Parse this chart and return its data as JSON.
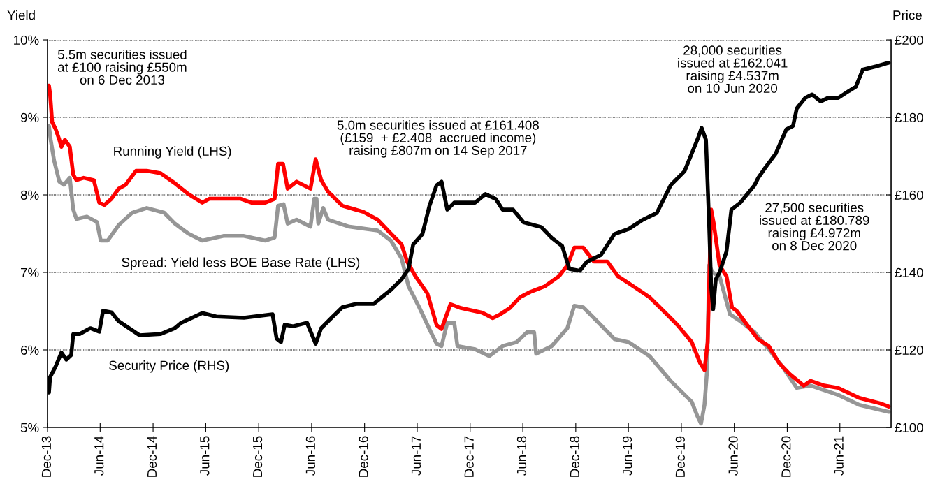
{
  "chart_data": {
    "type": "line",
    "ylabel": "Yield",
    "y2label": "Price",
    "xlim": [
      "2013-12-01",
      "2021-11-25"
    ],
    "xticks": [
      {
        "value": "2013-12-01",
        "label": "Dec-13"
      },
      {
        "value": "2014-06-01",
        "label": "Jun-14"
      },
      {
        "value": "2014-12-01",
        "label": "Dec-14"
      },
      {
        "value": "2015-06-01",
        "label": "Jun-15"
      },
      {
        "value": "2015-12-01",
        "label": "Dec-15"
      },
      {
        "value": "2016-06-01",
        "label": "Jun-16"
      },
      {
        "value": "2016-12-01",
        "label": "Dec-16"
      },
      {
        "value": "2017-06-01",
        "label": "Jun-17"
      },
      {
        "value": "2017-12-01",
        "label": "Dec-17"
      },
      {
        "value": "2018-06-01",
        "label": "Jun-18"
      },
      {
        "value": "2018-12-01",
        "label": "Dec-18"
      },
      {
        "value": "2019-06-01",
        "label": "Jun-19"
      },
      {
        "value": "2019-12-01",
        "label": "Dec-19"
      },
      {
        "value": "2020-06-01",
        "label": "Jun-20"
      },
      {
        "value": "2020-12-01",
        "label": "Dec-20"
      },
      {
        "value": "2021-06-01",
        "label": "Jun-21"
      }
    ],
    "ylim": [
      5,
      10
    ],
    "yticks": [
      {
        "value": 5,
        "label": "5%"
      },
      {
        "value": 6,
        "label": "6%"
      },
      {
        "value": 7,
        "label": "7%"
      },
      {
        "value": 8,
        "label": "8%"
      },
      {
        "value": 9,
        "label": "9%"
      },
      {
        "value": 10,
        "label": "10%"
      }
    ],
    "y2lim": [
      100,
      200
    ],
    "y2ticks": [
      {
        "value": 100,
        "label": "£100"
      },
      {
        "value": 120,
        "label": "£120"
      },
      {
        "value": 140,
        "label": "£140"
      },
      {
        "value": 160,
        "label": "£160"
      },
      {
        "value": 180,
        "label": "£180"
      },
      {
        "value": 200,
        "label": "£200"
      }
    ],
    "grid": "y",
    "legend": false,
    "series": [
      {
        "name": "Spread: Yield less BOE Base Rate (LHS)",
        "color": "#969696",
        "x": [
          "2013-12-06",
          "2013-12-12",
          "2013-12-24",
          "2014-01-11",
          "2014-01-27",
          "2014-02-16",
          "2014-02-28",
          "2014-03-11",
          "2014-04-16",
          "2014-05-21",
          "2014-06-03",
          "2014-06-27",
          "2014-08-04",
          "2014-09-20",
          "2014-11-09",
          "2015-01-08",
          "2015-02-14",
          "2015-04-02",
          "2015-05-20",
          "2015-08-01",
          "2015-10-11",
          "2015-12-24",
          "2016-01-25",
          "2016-02-06",
          "2016-02-25",
          "2016-03-10",
          "2016-04-10",
          "2016-05-28",
          "2016-06-10",
          "2016-06-18",
          "2016-06-24",
          "2016-07-11",
          "2016-07-28",
          "2016-10-09",
          "2017-01-15",
          "2017-03-02",
          "2017-04-08",
          "2017-05-02",
          "2017-06-08",
          "2017-07-13",
          "2017-08-07",
          "2017-08-24",
          "2017-09-13",
          "2017-10-07",
          "2017-10-18",
          "2017-12-18",
          "2018-02-05",
          "2018-03-23",
          "2018-05-10",
          "2018-06-16",
          "2018-07-10",
          "2018-07-17",
          "2018-09-09",
          "2018-11-02",
          "2018-11-26",
          "2018-12-27",
          "2019-02-26",
          "2019-04-14",
          "2019-06-02",
          "2019-08-13",
          "2019-10-25",
          "2020-01-06",
          "2020-01-25",
          "2020-02-07",
          "2020-02-19",
          "2020-02-28",
          "2020-03-06",
          "2020-03-18",
          "2020-04-11",
          "2020-05-17",
          "2020-06-22",
          "2020-08-10",
          "2020-09-28",
          "2020-11-15",
          "2021-01-03",
          "2021-02-20",
          "2021-05-26",
          "2021-08-07",
          "2021-11-17"
        ],
        "values": [
          8.89,
          8.71,
          8.44,
          8.17,
          8.13,
          8.22,
          7.81,
          7.69,
          7.72,
          7.65,
          7.41,
          7.41,
          7.61,
          7.77,
          7.83,
          7.77,
          7.63,
          7.5,
          7.41,
          7.47,
          7.47,
          7.41,
          7.45,
          7.86,
          7.88,
          7.63,
          7.68,
          7.59,
          7.95,
          7.95,
          7.63,
          7.83,
          7.68,
          7.59,
          7.54,
          7.41,
          7.18,
          6.82,
          6.55,
          6.27,
          6.08,
          6.05,
          6.35,
          6.35,
          6.05,
          6.01,
          5.92,
          6.05,
          6.1,
          6.23,
          6.23,
          5.95,
          6.05,
          6.28,
          6.57,
          6.55,
          6.32,
          6.14,
          6.1,
          5.92,
          5.6,
          5.33,
          5.15,
          5.05,
          5.29,
          5.74,
          7.09,
          7.0,
          6.95,
          6.46,
          6.37,
          6.23,
          6.01,
          5.78,
          5.51,
          5.54,
          5.42,
          5.29,
          5.2
        ]
      },
      {
        "name": "Running Yield (LHS)",
        "color": "#ff0000",
        "x": [
          "2013-12-06",
          "2013-12-10",
          "2013-12-17",
          "2013-12-29",
          "2014-01-11",
          "2014-01-18",
          "2014-01-30",
          "2014-02-16",
          "2014-02-28",
          "2014-03-11",
          "2014-04-05",
          "2014-05-10",
          "2014-05-29",
          "2014-06-16",
          "2014-07-10",
          "2014-08-04",
          "2014-08-28",
          "2014-10-03",
          "2014-11-09",
          "2014-12-27",
          "2015-02-14",
          "2015-04-02",
          "2015-05-20",
          "2015-06-13",
          "2015-08-25",
          "2015-09-30",
          "2015-11-06",
          "2015-12-24",
          "2016-01-25",
          "2016-02-06",
          "2016-02-23",
          "2016-03-10",
          "2016-04-10",
          "2016-05-28",
          "2016-06-15",
          "2016-07-04",
          "2016-07-28",
          "2016-09-15",
          "2016-11-27",
          "2017-01-15",
          "2017-03-02",
          "2017-04-08",
          "2017-04-27",
          "2017-05-26",
          "2017-07-06",
          "2017-08-07",
          "2017-08-24",
          "2017-09-24",
          "2017-10-30",
          "2018-01-12",
          "2018-02-17",
          "2018-03-11",
          "2018-04-17",
          "2018-05-22",
          "2018-06-28",
          "2018-08-16",
          "2018-10-04",
          "2018-11-02",
          "2018-11-26",
          "2018-12-27",
          "2019-02-02",
          "2019-03-20",
          "2019-04-26",
          "2019-06-02",
          "2019-08-13",
          "2019-10-01",
          "2019-11-18",
          "2020-01-06",
          "2020-02-04",
          "2020-02-19",
          "2020-03-01",
          "2020-03-06",
          "2020-03-13",
          "2020-03-22",
          "2020-04-11",
          "2020-05-05",
          "2020-05-24",
          "2020-06-10",
          "2020-07-16",
          "2020-08-22",
          "2020-09-28",
          "2020-11-03",
          "2020-12-09",
          "2021-01-27",
          "2021-02-20",
          "2021-04-08",
          "2021-05-26",
          "2021-08-07",
          "2021-10-19",
          "2021-11-17"
        ],
        "values": [
          9.41,
          9.3,
          8.94,
          8.85,
          8.71,
          8.62,
          8.71,
          8.62,
          8.26,
          8.19,
          8.22,
          8.19,
          7.9,
          7.87,
          7.95,
          8.08,
          8.13,
          8.31,
          8.31,
          8.28,
          8.15,
          8.01,
          7.9,
          7.95,
          7.95,
          7.95,
          7.9,
          7.9,
          7.95,
          8.4,
          8.4,
          8.08,
          8.17,
          8.08,
          8.46,
          8.19,
          8.04,
          7.86,
          7.78,
          7.68,
          7.5,
          7.36,
          7.14,
          6.95,
          6.73,
          6.32,
          6.27,
          6.59,
          6.54,
          6.48,
          6.41,
          6.45,
          6.54,
          6.68,
          6.75,
          6.82,
          6.95,
          7.09,
          7.32,
          7.32,
          7.14,
          7.14,
          6.95,
          6.86,
          6.68,
          6.5,
          6.32,
          6.1,
          5.83,
          5.74,
          6.1,
          6.82,
          7.81,
          7.63,
          7.09,
          6.95,
          6.55,
          6.5,
          6.32,
          6.14,
          6.05,
          5.83,
          5.69,
          5.54,
          5.6,
          5.54,
          5.51,
          5.38,
          5.31,
          5.27
        ]
      },
      {
        "name": "Security Price (RHS)",
        "color": "#000000",
        "axis": "y2",
        "x": [
          "2013-12-06",
          "2013-12-10",
          "2013-12-29",
          "2014-01-18",
          "2014-02-04",
          "2014-02-21",
          "2014-02-28",
          "2014-03-22",
          "2014-04-28",
          "2014-05-29",
          "2014-06-11",
          "2014-07-10",
          "2014-08-04",
          "2014-09-09",
          "2014-10-15",
          "2014-12-27",
          "2015-02-14",
          "2015-03-08",
          "2015-05-20",
          "2015-07-07",
          "2015-10-11",
          "2016-01-18",
          "2016-02-01",
          "2016-02-16",
          "2016-02-29",
          "2016-03-29",
          "2016-05-16",
          "2016-06-15",
          "2016-07-04",
          "2016-08-09",
          "2016-09-15",
          "2016-11-03",
          "2017-01-02",
          "2017-03-02",
          "2017-04-08",
          "2017-05-02",
          "2017-05-18",
          "2017-06-19",
          "2017-07-13",
          "2017-08-07",
          "2017-08-24",
          "2017-09-13",
          "2017-10-07",
          "2017-12-18",
          "2018-01-23",
          "2018-02-28",
          "2018-03-23",
          "2018-04-28",
          "2018-06-04",
          "2018-08-04",
          "2018-09-09",
          "2018-10-15",
          "2018-11-09",
          "2018-12-15",
          "2019-01-08",
          "2019-02-26",
          "2019-04-14",
          "2019-06-02",
          "2019-07-19",
          "2019-09-07",
          "2019-10-25",
          "2019-12-12",
          "2020-01-30",
          "2020-02-09",
          "2020-02-24",
          "2020-03-06",
          "2020-03-13",
          "2020-03-20",
          "2020-03-29",
          "2020-04-11",
          "2020-05-05",
          "2020-05-22",
          "2020-06-22",
          "2020-08-10",
          "2020-08-22",
          "2020-09-16",
          "2020-10-22",
          "2020-11-28",
          "2020-12-21",
          "2021-01-03",
          "2021-02-01",
          "2021-02-25",
          "2021-03-27",
          "2021-04-20",
          "2021-05-26",
          "2021-07-02",
          "2021-07-26",
          "2021-08-19",
          "2021-10-07",
          "2021-11-17"
        ],
        "values": [
          109.0,
          113.0,
          115.7,
          119.3,
          117.5,
          118.7,
          124.1,
          124.1,
          125.6,
          124.7,
          130.1,
          129.7,
          127.4,
          125.6,
          123.8,
          124.1,
          125.6,
          127.0,
          129.5,
          128.6,
          128.3,
          129.2,
          122.9,
          122.0,
          126.5,
          126.1,
          127.0,
          121.6,
          125.6,
          128.3,
          131.0,
          131.9,
          131.9,
          135.5,
          138.2,
          140.9,
          147.2,
          149.9,
          157.1,
          162.5,
          163.4,
          156.2,
          158.0,
          158.0,
          160.2,
          158.9,
          156.2,
          156.2,
          152.9,
          151.7,
          148.9,
          146.8,
          140.9,
          140.4,
          142.7,
          144.5,
          149.9,
          151.2,
          153.5,
          155.3,
          162.5,
          166.1,
          175.1,
          177.3,
          174.2,
          152.6,
          136.4,
          130.5,
          138.2,
          140.0,
          145.4,
          156.2,
          158.0,
          162.5,
          164.3,
          167.0,
          170.6,
          176.9,
          177.8,
          182.3,
          185.0,
          185.9,
          184.1,
          185.0,
          185.0,
          186.8,
          187.9,
          192.3,
          193.2,
          194.1
        ]
      }
    ],
    "annotations": [
      "5.5m securities issued\nat £100 raising £550m\non 6 Dec 2013",
      "5.0m securities issued at £161.408\n(£159  + £2.408  accrued income)\nraising £807m on 14 Sep 2017",
      "28,000 securities\nissued at £162.041\nraising £4.537m\non 10 Jun 2020",
      "27,500 securities\nissued at £180.789\nraising £4.972m\non 8 Dec 2020"
    ]
  }
}
